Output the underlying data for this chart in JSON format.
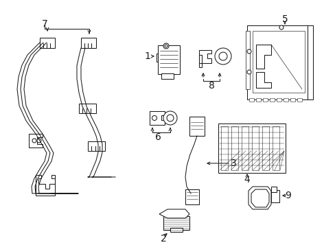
{
  "figsize": [
    4.89,
    3.6
  ],
  "dpi": 100,
  "bg": "#ffffff",
  "lc": "#1a1a1a",
  "lw": 0.75,
  "xlim": [
    0,
    489
  ],
  "ylim": [
    0,
    360
  ]
}
